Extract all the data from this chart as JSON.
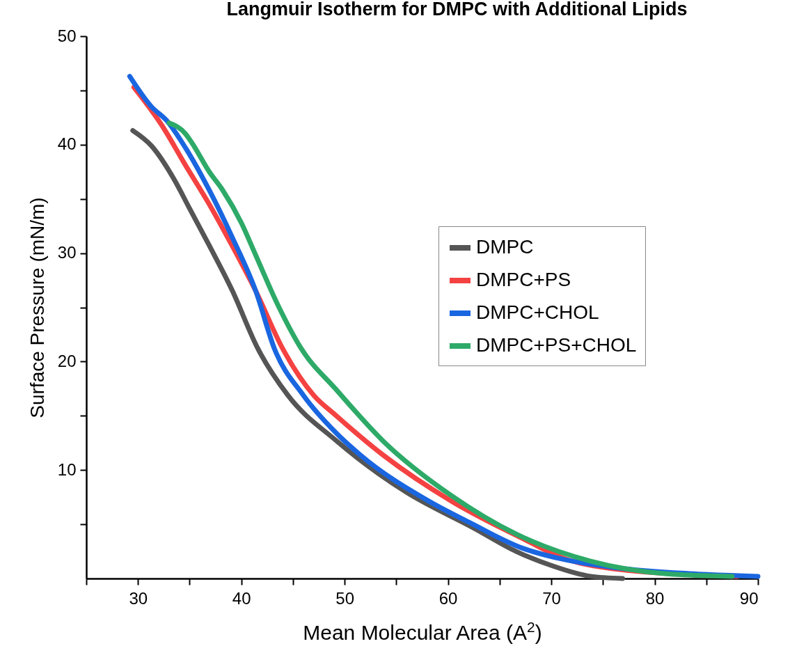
{
  "chart_data": {
    "type": "line",
    "title": "Langmuir Isotherm for DMPC with Additional Lipids",
    "xlabel": "Mean Molecular Area (A$^{2}$)",
    "ylabel": "Surface Pressure (mN/m)",
    "xlim": [
      25,
      90
    ],
    "xticks": [
      {
        "value": 25,
        "label": null
      },
      30,
      {
        "value": 35,
        "label": null
      },
      40,
      {
        "value": 45,
        "label": null
      },
      50,
      {
        "value": 55,
        "label": null
      },
      60,
      {
        "value": 65,
        "label": null
      },
      70,
      {
        "value": 75,
        "label": null
      },
      80,
      {
        "value": 85,
        "label": null
      },
      90
    ],
    "ylim": [
      0,
      50
    ],
    "yticks": [
      {
        "value": 5,
        "label": null
      },
      10,
      {
        "value": 15,
        "label": null
      },
      20,
      {
        "value": 25,
        "label": null
      },
      30,
      {
        "value": 35,
        "label": null
      },
      40,
      {
        "value": 45,
        "label": null
      },
      50
    ],
    "grid": false,
    "legend": "right",
    "marker": "none",
    "line_style": "solid",
    "series": [
      {
        "name": "DMPC",
        "color": "#555555",
        "x": [
          29.5,
          31.3,
          33.5,
          35.0,
          36.9,
          39.1,
          41.6,
          44.5,
          49.2,
          55.9,
          62.6,
          66.6,
          70.0,
          73.8,
          76.9
        ],
        "values": [
          41.3,
          39.9,
          36.8,
          34.1,
          30.7,
          26.6,
          21.2,
          16.9,
          12.7,
          8.0,
          4.6,
          2.5,
          1.2,
          0.2,
          0
        ]
      },
      {
        "name": "DMPC+PS",
        "color": "#f44242",
        "x": [
          29.6,
          32.3,
          34.6,
          36.9,
          39.1,
          41.4,
          44.0,
          47.0,
          49.2,
          53.7,
          60.4,
          67.2,
          71.4,
          76.0,
          88.0
        ],
        "values": [
          45.3,
          41.8,
          38.1,
          34.5,
          30.7,
          26.5,
          21.2,
          16.9,
          15.0,
          11.4,
          7.1,
          3.7,
          1.8,
          0.9,
          0.2
        ]
      },
      {
        "name": "DMPC+CHOL",
        "color": "#1a66e0",
        "x": [
          29.2,
          31.3,
          32.8,
          34.6,
          36.9,
          39.1,
          41.4,
          43.2,
          46.0,
          49.2,
          51.5,
          58.2,
          62.0,
          67.2,
          71.0,
          76.2,
          83.4,
          90.0
        ],
        "values": [
          46.3,
          43.5,
          42.2,
          39.7,
          35.8,
          31.5,
          26.5,
          21.2,
          16.9,
          13.4,
          11.4,
          7.1,
          5.2,
          2.8,
          1.8,
          1.0,
          0.45,
          0.2
        ]
      },
      {
        "name": "DMPC+PS+CHOL",
        "color": "#2eaa68",
        "x": [
          33.0,
          34.6,
          35.2,
          36.9,
          38.2,
          40.0,
          41.4,
          43.6,
          45.8,
          49.2,
          53.7,
          60.4,
          66.6,
          73.8,
          81.0,
          87.5
        ],
        "values": [
          42.0,
          41.0,
          40.2,
          37.5,
          35.8,
          32.8,
          29.8,
          25.1,
          21.2,
          17.4,
          12.7,
          7.6,
          4.1,
          1.6,
          0.45,
          0.2
        ]
      }
    ]
  }
}
